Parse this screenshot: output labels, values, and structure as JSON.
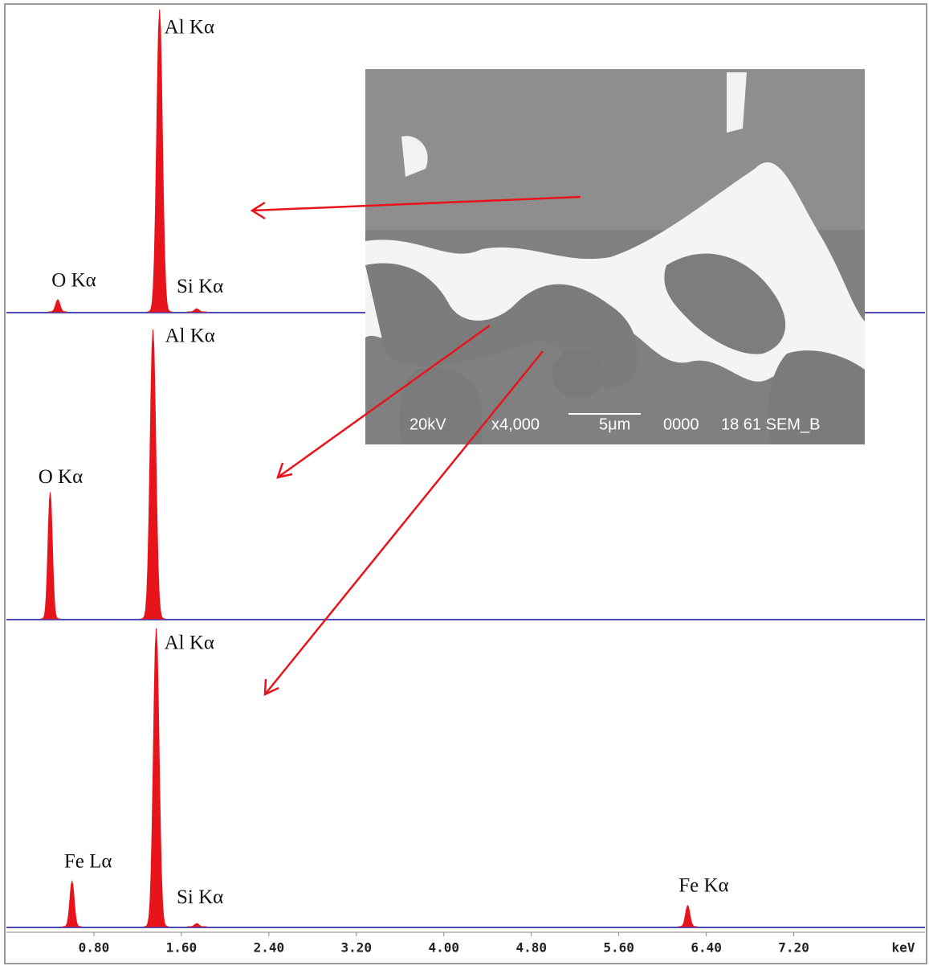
{
  "chart_data": [
    {
      "type": "spectrum",
      "color": "#e8141c",
      "xlim": [
        0,
        8.4
      ],
      "ylim": [
        0,
        100
      ],
      "x": [
        0.47,
        1.4,
        1.74
      ],
      "values": [
        4,
        100,
        1
      ],
      "labels": [
        "O Kα",
        "Al Kα",
        "Si Kα"
      ]
    },
    {
      "type": "spectrum",
      "color": "#e8141c",
      "xlim": [
        0,
        8.4
      ],
      "ylim": [
        0,
        100
      ],
      "x": [
        0.4,
        1.34
      ],
      "values": [
        42,
        96
      ],
      "labels": [
        "O Kα",
        "Al Kα"
      ]
    },
    {
      "type": "spectrum",
      "color": "#e8141c",
      "xlim": [
        0,
        8.4
      ],
      "ylim": [
        0,
        100
      ],
      "x": [
        0.6,
        1.37,
        1.74,
        6.23
      ],
      "values": [
        15,
        99,
        1,
        7
      ],
      "labels": [
        "Fe Lα",
        "Al Kα",
        "Si Kα",
        "Fe Kα"
      ],
      "xticks": [
        {
          "value": 0.8,
          "label": "0.80"
        },
        {
          "value": 1.6,
          "label": "1.60"
        },
        {
          "value": 2.4,
          "label": "2.40"
        },
        {
          "value": 3.2,
          "label": "3.20"
        },
        {
          "value": 4.0,
          "label": "4.00"
        },
        {
          "value": 4.8,
          "label": "4.80"
        },
        {
          "value": 5.6,
          "label": "5.60"
        },
        {
          "value": 6.4,
          "label": "6.40"
        },
        {
          "value": 7.2,
          "label": "7.20"
        }
      ],
      "xlabel": "keV"
    }
  ],
  "sem_image": {
    "captions": [
      "20kV",
      "x4,000",
      "5μm",
      "0000",
      "18 61 SEM_B"
    ]
  }
}
